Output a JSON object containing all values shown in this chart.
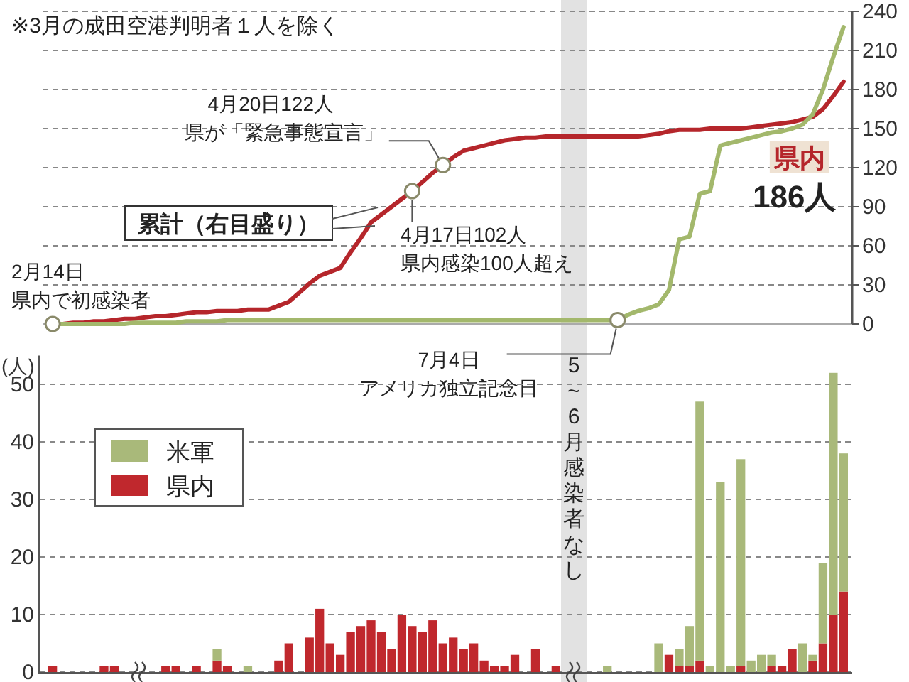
{
  "chart_data": [
    {
      "type": "line",
      "ylim": [
        0,
        240
      ],
      "yticks": [
        0,
        30,
        60,
        90,
        120,
        150,
        180,
        210,
        240
      ],
      "grid": "y",
      "tick_labels": "y",
      "line_style": "solid",
      "categories": [
        null,
        null,
        null,
        null,
        null,
        null,
        null,
        null,
        null,
        null,
        null,
        null,
        null,
        null,
        null,
        null,
        null,
        null,
        null,
        null,
        null,
        null,
        null,
        null,
        null,
        null,
        null,
        null,
        null,
        null,
        null,
        null,
        null,
        null,
        null,
        null,
        null,
        null,
        null,
        null,
        null,
        null,
        null,
        null,
        null,
        null,
        null,
        null,
        null,
        null,
        null,
        null,
        null,
        null,
        null,
        null,
        null,
        null,
        null,
        null,
        null,
        null,
        null,
        null,
        null,
        null,
        null,
        null,
        null,
        null,
        null,
        null,
        null,
        null,
        null,
        null,
        null,
        null
      ],
      "series": [
        {
          "name": "県内",
          "color": "#b5262b",
          "values": [
            0,
            0,
            1,
            1,
            2,
            2,
            3,
            4,
            4,
            5,
            6,
            6,
            7,
            8,
            9,
            9,
            10,
            10,
            10,
            11,
            11,
            11,
            14,
            17,
            24,
            31,
            37,
            40,
            43,
            55,
            66,
            78,
            84,
            90,
            96,
            102,
            109,
            116,
            122,
            128,
            133,
            135,
            137,
            139,
            141,
            142,
            143,
            143,
            144,
            144,
            144,
            144,
            144,
            144,
            144,
            144,
            144,
            144,
            145,
            146,
            148,
            149,
            149,
            149,
            150,
            150,
            150,
            150,
            151,
            152,
            153,
            154,
            155,
            157,
            159,
            165,
            175,
            186
          ]
        },
        {
          "color": "#a3b86c",
          "values": [
            0,
            0,
            0,
            0,
            0,
            0,
            0,
            0,
            1,
            1,
            1,
            1,
            1,
            2,
            2,
            2,
            2,
            3,
            3,
            3,
            3,
            3,
            3,
            3,
            3,
            3,
            3,
            3,
            3,
            3,
            3,
            3,
            3,
            3,
            3,
            3,
            3,
            3,
            3,
            3,
            3,
            3,
            3,
            3,
            3,
            3,
            3,
            3,
            3,
            3,
            3,
            3,
            3,
            3,
            3,
            3,
            7,
            10,
            12,
            15,
            26,
            65,
            67,
            100,
            102,
            137,
            139,
            141,
            143,
            145,
            147,
            148,
            150,
            153,
            161,
            180,
            205,
            228
          ]
        }
      ],
      "annotations": [
        "※3月の成田空港判明者１人を除く",
        "累計（右目盛り）",
        "2月14日",
        "県内で初感染者",
        "4月17日102人",
        "県内感染100人超え",
        "4月20日122人",
        "県が「緊急事態宣言」",
        "7月4日",
        "アメリカ独立記念日",
        "186人"
      ]
    },
    {
      "type": "bar",
      "stacked": true,
      "ylim": [
        0,
        55
      ],
      "yticks": [
        0,
        10,
        20,
        30,
        40,
        50
      ],
      "ylabel": "(人)",
      "grid": "y",
      "legend": "top left",
      "categories": [
        null,
        null,
        null,
        null,
        null,
        null,
        null,
        null,
        null,
        null,
        null,
        null,
        null,
        null,
        null,
        null,
        null,
        null,
        null,
        null,
        null,
        null,
        null,
        null,
        null,
        null,
        null,
        null,
        null,
        null,
        null,
        null,
        null,
        null,
        null,
        null,
        null,
        null,
        null,
        null,
        null,
        null,
        null,
        null,
        null,
        null,
        null,
        null,
        null,
        null,
        null,
        null,
        null,
        null,
        null,
        null,
        null,
        null,
        null,
        null,
        null,
        null,
        null,
        null,
        null,
        null,
        null,
        null,
        null,
        null,
        null,
        null,
        null,
        null,
        null,
        null,
        null,
        null
      ],
      "series": [
        {
          "name": "県内",
          "color": "#c0282d",
          "values": [
            1,
            0,
            0,
            0,
            0,
            1,
            1,
            0,
            0,
            0,
            0,
            1,
            1,
            0,
            1,
            0,
            2,
            1,
            0,
            0,
            0,
            0,
            2,
            5,
            0,
            6,
            11,
            5,
            3,
            7,
            8,
            9,
            7,
            4,
            10,
            8,
            7,
            9,
            5,
            6,
            4,
            5,
            2,
            1,
            1,
            3,
            0,
            4,
            0,
            1,
            0,
            0,
            0,
            0,
            0,
            0,
            0,
            0,
            0,
            0,
            3,
            1,
            1,
            2,
            0,
            0,
            0,
            1,
            0,
            0,
            1,
            1,
            4,
            0,
            2,
            5,
            10,
            14
          ]
        },
        {
          "name": "米軍",
          "color": "#a9b97a",
          "values": [
            0,
            0,
            0,
            0,
            0,
            0,
            0,
            0,
            0,
            0,
            0,
            0,
            0,
            0,
            0,
            0,
            2,
            0,
            0,
            1,
            0,
            0,
            0,
            0,
            0,
            0,
            0,
            0,
            0,
            0,
            0,
            0,
            0,
            0,
            0,
            0,
            0,
            0,
            0,
            0,
            0,
            0,
            0,
            0,
            0,
            0,
            0,
            0,
            0,
            0,
            0,
            0,
            0,
            0,
            1,
            0,
            0,
            0,
            0,
            5,
            0,
            3,
            7,
            45,
            1,
            33,
            1,
            36,
            2,
            3,
            2,
            0,
            0,
            5,
            1,
            14,
            42,
            24
          ]
        }
      ],
      "annotations": [
        "5~6月感染者なし"
      ]
    }
  ]
}
